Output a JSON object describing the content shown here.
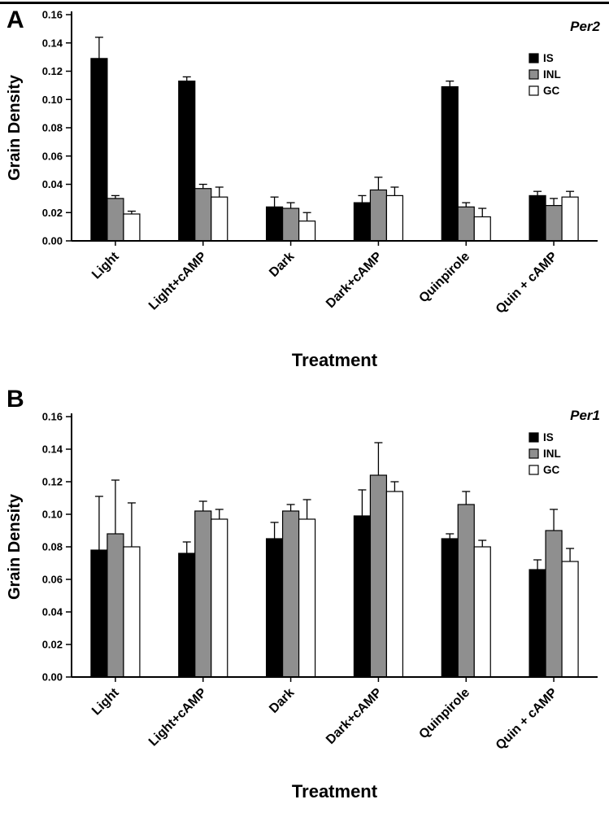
{
  "figure": {
    "panels": [
      {
        "label": "A"
      },
      {
        "label": "B"
      }
    ]
  },
  "chart_data": [
    {
      "type": "bar",
      "panel": "A",
      "title": "Per2",
      "legend_title": "Per2",
      "xlabel": "Treatment",
      "ylabel": "Grain Density",
      "ylim": [
        0,
        0.16
      ],
      "ytick_step": 0.02,
      "grid": false,
      "legend_position": "top-right",
      "categories": [
        "Light",
        "Light+cAMP",
        "Dark",
        "Dark+cAMP",
        "Quinpirole",
        "Quin + cAMP"
      ],
      "series": [
        {
          "name": "IS",
          "color": "#000000",
          "values": [
            0.129,
            0.113,
            0.024,
            0.027,
            0.109,
            0.032
          ],
          "errors": [
            0.015,
            0.003,
            0.007,
            0.005,
            0.004,
            0.003
          ]
        },
        {
          "name": "INL",
          "color": "#8f8f8f",
          "values": [
            0.03,
            0.037,
            0.023,
            0.036,
            0.024,
            0.025
          ],
          "errors": [
            0.002,
            0.003,
            0.004,
            0.009,
            0.003,
            0.005
          ]
        },
        {
          "name": "GC",
          "color": "#ffffff",
          "values": [
            0.019,
            0.031,
            0.014,
            0.032,
            0.017,
            0.031
          ],
          "errors": [
            0.002,
            0.007,
            0.006,
            0.006,
            0.006,
            0.004
          ]
        }
      ]
    },
    {
      "type": "bar",
      "panel": "B",
      "title": "Per1",
      "legend_title": "Per1",
      "xlabel": "Treatment",
      "ylabel": "Grain Density",
      "ylim": [
        0,
        0.16
      ],
      "ytick_step": 0.02,
      "grid": false,
      "legend_position": "top-right",
      "categories": [
        "Light",
        "Light+cAMP",
        "Dark",
        "Dark+cAMP",
        "Quinpirole",
        "Quin + cAMP"
      ],
      "series": [
        {
          "name": "IS",
          "color": "#000000",
          "values": [
            0.078,
            0.076,
            0.085,
            0.099,
            0.085,
            0.066
          ],
          "errors": [
            0.033,
            0.007,
            0.01,
            0.016,
            0.003,
            0.006
          ]
        },
        {
          "name": "INL",
          "color": "#8f8f8f",
          "values": [
            0.088,
            0.102,
            0.102,
            0.124,
            0.106,
            0.09
          ],
          "errors": [
            0.033,
            0.006,
            0.004,
            0.02,
            0.008,
            0.013
          ]
        },
        {
          "name": "GC",
          "color": "#ffffff",
          "values": [
            0.08,
            0.097,
            0.097,
            0.114,
            0.08,
            0.071
          ],
          "errors": [
            0.027,
            0.006,
            0.012,
            0.006,
            0.004,
            0.008
          ]
        }
      ]
    }
  ]
}
